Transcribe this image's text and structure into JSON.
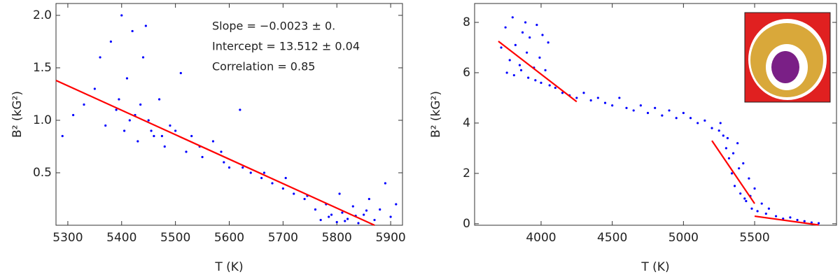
{
  "chart_data": [
    {
      "type": "scatter",
      "x_label": "T (K)",
      "y_label": "B² (kG²)",
      "annotations": [
        "Slope = −0.0023 ± 0.",
        "Intercept = 13.512 ± 0.04",
        "Correlation = 0.85"
      ],
      "xlim": [
        5278,
        5922
      ],
      "ylim": [
        0,
        2.113
      ],
      "xticks": [
        5300,
        5400,
        5500,
        5600,
        5700,
        5800,
        5900
      ],
      "yticks": [
        0.5,
        {
          "value": 1,
          "label": "1.0"
        },
        1.5,
        {
          "value": 2,
          "label": "2.0"
        }
      ],
      "grid": false,
      "series": [
        {
          "mode": "markers",
          "color": "#0000ff",
          "x": [
            5290,
            5310,
            5330,
            5350,
            5360,
            5370,
            5380,
            5390,
            5400,
            5405,
            5410,
            5420,
            5425,
            5430,
            5440,
            5445,
            5450,
            5460,
            5470,
            5480,
            5490,
            5500,
            5510,
            5520,
            5530,
            5550,
            5570,
            5590,
            5600,
            5620,
            5640,
            5660,
            5680,
            5700,
            5720,
            5740,
            5760,
            5770,
            5780,
            5790,
            5800,
            5805,
            5810,
            5820,
            5830,
            5840,
            5850,
            5860,
            5870,
            5880,
            5890,
            5900,
            5910,
            5395,
            5415,
            5435,
            5455,
            5475,
            5545,
            5585,
            5625,
            5665,
            5705,
            5745,
            5785,
            5815,
            5835,
            5855
          ],
          "values": [
            0.85,
            1.05,
            1.15,
            1.3,
            1.6,
            0.95,
            1.75,
            1.1,
            2.0,
            0.9,
            1.4,
            1.85,
            1.05,
            0.8,
            1.6,
            1.9,
            1.0,
            0.85,
            1.2,
            0.75,
            0.95,
            0.9,
            1.45,
            0.7,
            0.85,
            0.65,
            0.8,
            0.6,
            0.55,
            1.1,
            0.5,
            0.45,
            0.4,
            0.35,
            0.3,
            0.25,
            0.15,
            0.05,
            0.2,
            0.1,
            0.03,
            0.3,
            0.12,
            0.06,
            0.18,
            0.02,
            0.1,
            0.25,
            0.05,
            0.15,
            0.4,
            0.08,
            0.2,
            1.2,
            1.0,
            1.15,
            0.9,
            0.85,
            0.75,
            0.7,
            0.55,
            0.5,
            0.45,
            0.28,
            0.08,
            0.04,
            0.09,
            0.14
          ]
        },
        {
          "mode": "line",
          "color": "#ff0000",
          "x": [
            5278,
            5870
          ],
          "values": [
            1.38,
            0
          ]
        }
      ]
    },
    {
      "type": "scatter",
      "x_label": "T (K)",
      "y_label": "B² (kG²)",
      "xlim": [
        3533,
        6075
      ],
      "ylim": [
        -0.06,
        8.75
      ],
      "xticks": [
        4000,
        4500,
        5000,
        5500
      ],
      "yticks": [
        0,
        2,
        4,
        6,
        8
      ],
      "grid": false,
      "series": [
        {
          "mode": "markers",
          "color": "#0000ff",
          "x": [
            3720,
            3750,
            3780,
            3800,
            3820,
            3850,
            3870,
            3890,
            3900,
            3920,
            3950,
            3970,
            3990,
            4010,
            4030,
            4050,
            3760,
            3810,
            3860,
            3910,
            3960,
            4000,
            4060,
            4100,
            4150,
            4200,
            4250,
            4300,
            4350,
            4400,
            4450,
            4500,
            4550,
            4600,
            4650,
            4700,
            4750,
            4800,
            4850,
            4900,
            4950,
            5000,
            5050,
            5100,
            5150,
            5200,
            5250,
            5280,
            5300,
            5320,
            5340,
            5360,
            5380,
            5400,
            5420,
            5440,
            5460,
            5480,
            5500,
            5520,
            5550,
            5580,
            5600,
            5650,
            5700,
            5750,
            5800,
            5850,
            5900,
            5950,
            5260,
            5310,
            5350,
            5390,
            5430,
            5470
          ],
          "values": [
            7.0,
            7.8,
            6.5,
            8.2,
            7.1,
            6.3,
            7.6,
            8.0,
            6.8,
            7.4,
            6.2,
            7.9,
            6.6,
            7.5,
            6.1,
            7.2,
            6.0,
            5.9,
            6.1,
            5.8,
            5.7,
            5.6,
            5.5,
            5.4,
            5.2,
            5.1,
            5.0,
            5.2,
            4.9,
            5.0,
            4.8,
            4.7,
            5.0,
            4.6,
            4.5,
            4.7,
            4.4,
            4.6,
            4.3,
            4.5,
            4.2,
            4.4,
            4.2,
            4.0,
            4.1,
            3.8,
            3.7,
            3.5,
            3.0,
            2.6,
            2.0,
            1.5,
            3.2,
            1.2,
            2.4,
            0.9,
            1.8,
            0.6,
            1.4,
            0.5,
            0.8,
            0.4,
            0.6,
            0.3,
            0.2,
            0.25,
            0.15,
            0.1,
            0.05,
            0.02,
            4.0,
            3.4,
            2.8,
            2.2,
            1.0,
            1.1
          ]
        },
        {
          "mode": "line",
          "color": "#ff0000",
          "x": [
            3700,
            4250
          ],
          "values": [
            7.25,
            4.85
          ]
        },
        {
          "mode": "line",
          "color": "#ff0000",
          "x": [
            5200,
            5500
          ],
          "values": [
            3.3,
            0.8
          ]
        },
        {
          "mode": "line",
          "color": "#ff0000",
          "x": [
            5500,
            5950
          ],
          "values": [
            0.3,
            -0.05
          ]
        }
      ]
    }
  ]
}
